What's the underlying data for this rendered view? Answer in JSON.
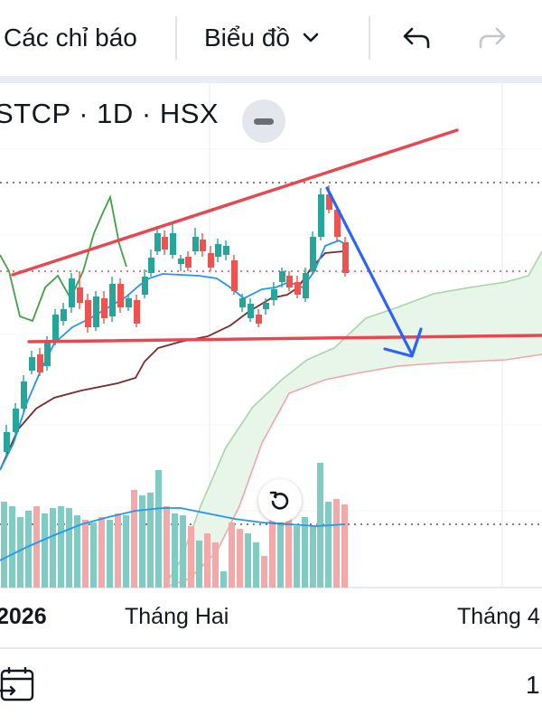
{
  "toolbar": {
    "indicators_label": "Các chỉ báo",
    "chart_type_label": "Biểu đồ",
    "undo_icon": "undo-icon",
    "redo_icon": "redo-icon"
  },
  "symbol": {
    "text": "STCP · 1D · HSX",
    "collapse_icon": "minus-icon"
  },
  "axis": {
    "label_2026": "2026",
    "label_february": "Tháng Hai",
    "label_april": "Tháng 4"
  },
  "bottom": {
    "calendar_icon": "calendar-range-icon",
    "page_number": "1"
  },
  "colors": {
    "up": "#26a69a",
    "down": "#ef5350",
    "trendline": "#e84752",
    "arrow": "#2962ff",
    "kijun": "#7a2a2a",
    "tenkan": "#2196f3",
    "chikou": "#43a047",
    "cloud_fill": "#e8f5e9",
    "span_a": "#a5d6a7",
    "span_b": "#f4a6a6",
    "volume_ma": "#2196f3",
    "volume_up": "#80cbc4",
    "volume_down": "#f5a8a8"
  },
  "chart_data": {
    "type": "candlestick",
    "indicators": [
      "ichimoku",
      "volume"
    ],
    "x_axis_labels": [
      "2026",
      "Tháng Hai",
      "Tháng 4"
    ],
    "candles": [
      {
        "dir": "up"
      },
      {
        "dir": "up"
      },
      {
        "dir": "up"
      },
      {
        "dir": "up"
      },
      {
        "dir": "down"
      },
      {
        "dir": "up"
      },
      {
        "dir": "up"
      },
      {
        "dir": "up"
      },
      {
        "dir": "up"
      },
      {
        "dir": "up"
      },
      {
        "dir": "down"
      },
      {
        "dir": "up"
      },
      {
        "dir": "down"
      },
      {
        "dir": "up"
      },
      {
        "dir": "down"
      },
      {
        "dir": "up"
      },
      {
        "dir": "down"
      },
      {
        "dir": "up"
      },
      {
        "dir": "up"
      },
      {
        "dir": "up"
      },
      {
        "dir": "down"
      },
      {
        "dir": "up"
      },
      {
        "dir": "up"
      },
      {
        "dir": "down"
      },
      {
        "dir": "up"
      },
      {
        "dir": "down"
      },
      {
        "dir": "down"
      },
      {
        "dir": "up"
      },
      {
        "dir": "down"
      },
      {
        "dir": "down"
      },
      {
        "dir": "up"
      },
      {
        "dir": "up"
      },
      {
        "dir": "down"
      },
      {
        "dir": "down"
      },
      {
        "dir": "up"
      },
      {
        "dir": "down"
      },
      {
        "dir": "up"
      },
      {
        "dir": "up"
      },
      {
        "dir": "up"
      },
      {
        "dir": "up"
      },
      {
        "dir": "up"
      },
      {
        "dir": "down"
      },
      {
        "dir": "down"
      }
    ],
    "drawings": [
      "upper-trendline",
      "horizontal-support-line",
      "down-arrow"
    ]
  }
}
